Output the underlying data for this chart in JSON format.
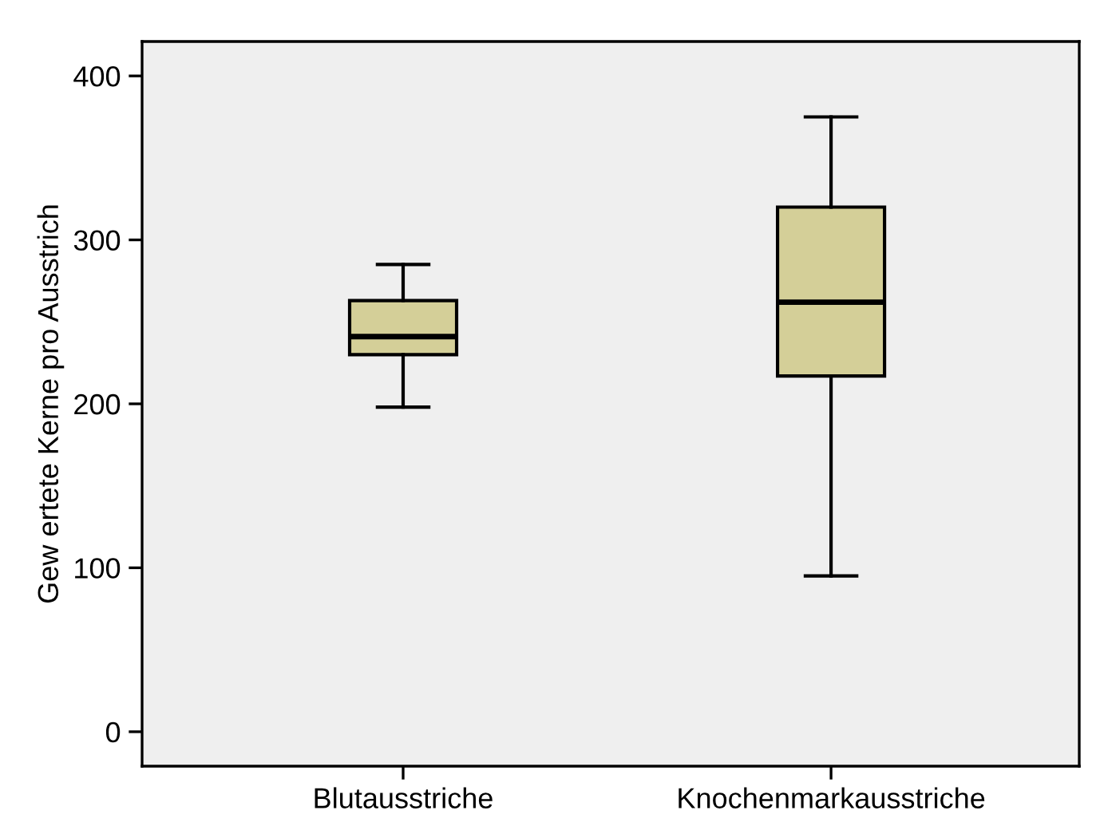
{
  "chart_data": {
    "type": "box",
    "ylabel": "Gew ertete Kerne pro Ausstrich",
    "categories": [
      "Blutausstriche",
      "Knochenmarkausstriche"
    ],
    "boxes": [
      {
        "low": 198,
        "q1": 230,
        "median": 241,
        "q3": 263,
        "high": 285
      },
      {
        "low": 95,
        "q1": 217,
        "median": 262,
        "q3": 320,
        "high": 375
      }
    ],
    "color": "#d4cf98",
    "ylim": [
      -21,
      421
    ],
    "yticks": [
      0,
      100,
      200,
      300,
      400
    ],
    "grid": false
  }
}
